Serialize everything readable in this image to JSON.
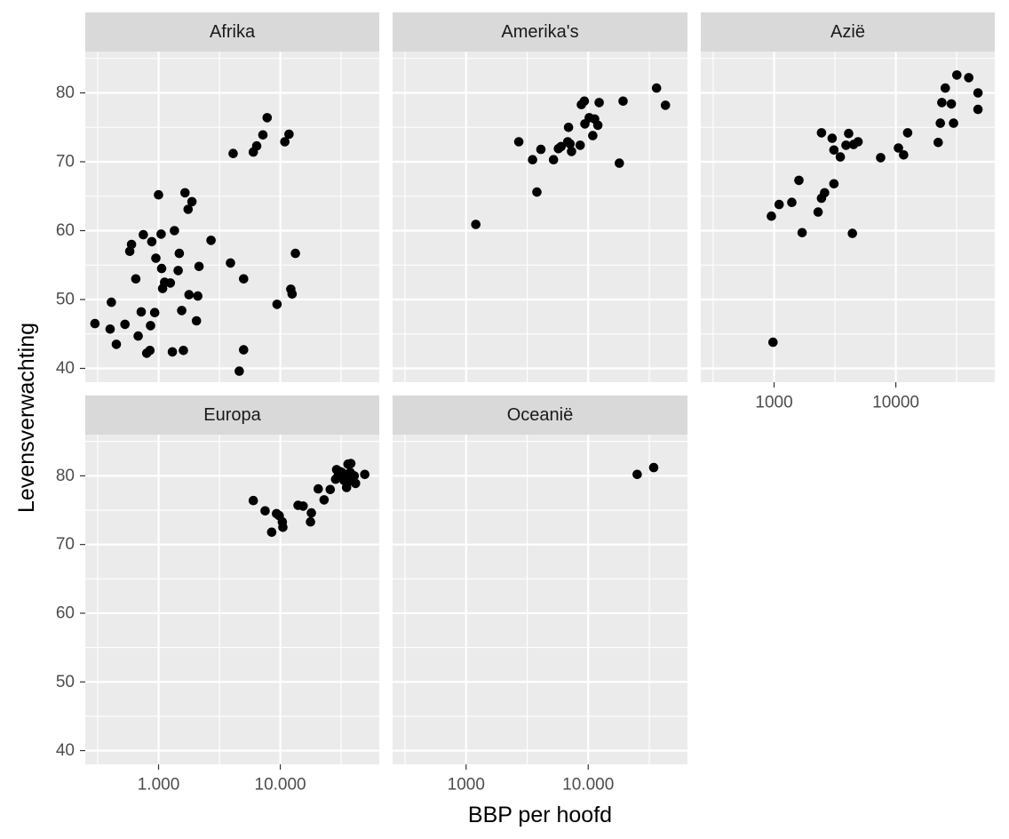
{
  "chart_data": {
    "type": "scatter",
    "layout": "faceted",
    "xscale": "log10",
    "xlabel": "BBP per hoofd",
    "ylabel": "Levensverwachting",
    "xlim": [
      250,
      65000
    ],
    "ylim": [
      38,
      86
    ],
    "y_ticks": [
      40,
      50,
      60,
      70,
      80
    ],
    "y_tick_labels": [
      "40",
      "50",
      "60",
      "70",
      "80"
    ],
    "x_ticks": [
      1000,
      10000
    ],
    "x_tick_labels_per_column": [
      [
        "1.000",
        "10.000"
      ],
      [
        "1000",
        "10.000"
      ],
      [
        "1000",
        "10000"
      ]
    ],
    "point_color": "#000000",
    "panel_color": "#ebebeb",
    "strip_color": "#d9d9d9",
    "facets": [
      {
        "label": "Afrika",
        "points": [
          [
            300,
            46.5
          ],
          [
            400,
            45.7
          ],
          [
            410,
            49.6
          ],
          [
            450,
            43.5
          ],
          [
            530,
            46.4
          ],
          [
            580,
            57
          ],
          [
            600,
            58
          ],
          [
            650,
            53
          ],
          [
            680,
            44.7
          ],
          [
            720,
            48.2
          ],
          [
            750,
            59.4
          ],
          [
            800,
            42.2
          ],
          [
            850,
            42.6
          ],
          [
            860,
            46.2
          ],
          [
            880,
            58.4
          ],
          [
            930,
            48.1
          ],
          [
            950,
            56
          ],
          [
            1000,
            65.2
          ],
          [
            1050,
            59.5
          ],
          [
            1060,
            54.5
          ],
          [
            1080,
            51.6
          ],
          [
            1120,
            52.5
          ],
          [
            1250,
            52.4
          ],
          [
            1300,
            42.4
          ],
          [
            1350,
            60
          ],
          [
            1450,
            54.2
          ],
          [
            1480,
            56.7
          ],
          [
            1550,
            48.4
          ],
          [
            1600,
            42.6
          ],
          [
            1650,
            65.5
          ],
          [
            1750,
            63.1
          ],
          [
            1780,
            50.7
          ],
          [
            1880,
            64.2
          ],
          [
            2050,
            46.9
          ],
          [
            2100,
            50.5
          ],
          [
            2150,
            54.8
          ],
          [
            2700,
            58.6
          ],
          [
            3900,
            55.3
          ],
          [
            4100,
            71.2
          ],
          [
            4600,
            39.6
          ],
          [
            5000,
            42.7
          ],
          [
            5000,
            53
          ],
          [
            6000,
            71.4
          ],
          [
            6400,
            72.3
          ],
          [
            7200,
            73.9
          ],
          [
            7800,
            76.4
          ],
          [
            9400,
            49.3
          ],
          [
            10900,
            72.9
          ],
          [
            11800,
            74
          ],
          [
            12200,
            51.5
          ],
          [
            12500,
            50.8
          ],
          [
            13300,
            56.7
          ]
        ]
      },
      {
        "label": "Amerika's",
        "points": [
          [
            1200,
            60.9
          ],
          [
            2700,
            72.9
          ],
          [
            3500,
            70.3
          ],
          [
            3800,
            65.6
          ],
          [
            4100,
            71.8
          ],
          [
            5200,
            70.3
          ],
          [
            5700,
            71.9
          ],
          [
            6000,
            72.2
          ],
          [
            6800,
            72.9
          ],
          [
            6900,
            75
          ],
          [
            7100,
            72.6
          ],
          [
            7300,
            71.5
          ],
          [
            8600,
            72.4
          ],
          [
            8800,
            78.3
          ],
          [
            9300,
            78.8
          ],
          [
            9400,
            75.5
          ],
          [
            10200,
            76.4
          ],
          [
            10900,
            73.8
          ],
          [
            11300,
            76.2
          ],
          [
            12000,
            75.3
          ],
          [
            12300,
            78.6
          ],
          [
            18000,
            69.8
          ],
          [
            19300,
            78.8
          ],
          [
            36300,
            80.7
          ],
          [
            42900,
            78.2
          ]
        ]
      },
      {
        "label": "Azië",
        "points": [
          [
            950,
            62.1
          ],
          [
            980,
            43.8
          ],
          [
            1100,
            63.8
          ],
          [
            1400,
            64.1
          ],
          [
            1600,
            67.3
          ],
          [
            1700,
            59.7
          ],
          [
            2300,
            62.7
          ],
          [
            2450,
            74.2
          ],
          [
            2450,
            64.7
          ],
          [
            2600,
            65.5
          ],
          [
            3000,
            73.4
          ],
          [
            3100,
            66.8
          ],
          [
            3100,
            71.7
          ],
          [
            3500,
            70.7
          ],
          [
            3900,
            72.4
          ],
          [
            4100,
            74.1
          ],
          [
            4400,
            59.6
          ],
          [
            4500,
            72.5
          ],
          [
            4900,
            72.9
          ],
          [
            7500,
            70.6
          ],
          [
            10500,
            72
          ],
          [
            11600,
            71
          ],
          [
            12500,
            74.2
          ],
          [
            22300,
            72.8
          ],
          [
            23200,
            75.6
          ],
          [
            23900,
            78.6
          ],
          [
            25500,
            80.7
          ],
          [
            28600,
            78.4
          ],
          [
            29800,
            75.6
          ],
          [
            31700,
            82.6
          ],
          [
            39700,
            82.2
          ],
          [
            47300,
            80
          ],
          [
            47300,
            77.6
          ]
        ]
      },
      {
        "label": "Europa",
        "points": [
          [
            6000,
            76.4
          ],
          [
            7500,
            74.9
          ],
          [
            8500,
            71.8
          ],
          [
            9300,
            74.5
          ],
          [
            9800,
            74.2
          ],
          [
            10400,
            73.3
          ],
          [
            10500,
            72.5
          ],
          [
            14000,
            75.7
          ],
          [
            15400,
            75.6
          ],
          [
            17700,
            73.3
          ],
          [
            18000,
            74.6
          ],
          [
            20500,
            78.1
          ],
          [
            22900,
            76.5
          ],
          [
            25700,
            78
          ],
          [
            28500,
            79.5
          ],
          [
            29000,
            80.9
          ],
          [
            30000,
            80.1
          ],
          [
            31000,
            80.6
          ],
          [
            32000,
            80.5
          ],
          [
            33000,
            79.8
          ],
          [
            33500,
            79.3
          ],
          [
            34500,
            79.4
          ],
          [
            35000,
            78.3
          ],
          [
            36000,
            81.7
          ],
          [
            36500,
            79.2
          ],
          [
            37500,
            80.5
          ],
          [
            38000,
            81.8
          ],
          [
            40500,
            80
          ],
          [
            41500,
            78.9
          ],
          [
            49400,
            80.2
          ]
        ]
      },
      {
        "label": "Oceanië",
        "points": [
          [
            25200,
            80.2
          ],
          [
            34400,
            81.2
          ]
        ]
      }
    ]
  }
}
